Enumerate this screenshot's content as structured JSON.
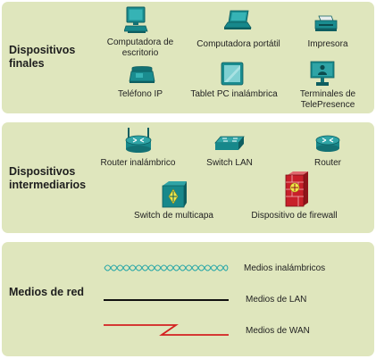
{
  "sections": [
    {
      "title_line1": "Dispositivos",
      "title_line2": "finales",
      "items": [
        {
          "label_line1": "Computadora de",
          "label_line2": "escritorio",
          "icon": "desktop-computer-icon"
        },
        {
          "label_line1": "Computadora portátil",
          "label_line2": "",
          "icon": "laptop-icon"
        },
        {
          "label_line1": "Impresora",
          "label_line2": "",
          "icon": "printer-icon"
        },
        {
          "label_line1": "Teléfono IP",
          "label_line2": "",
          "icon": "ip-phone-icon"
        },
        {
          "label_line1": "Tablet PC inalámbrica",
          "label_line2": "",
          "icon": "tablet-icon"
        },
        {
          "label_line1": "Terminales de",
          "label_line2": "TelePresence",
          "icon": "telepresence-icon"
        }
      ]
    },
    {
      "title_line1": "Dispositivos",
      "title_line2": "intermediarios",
      "items": [
        {
          "label_line1": "Router inalámbrico",
          "label_line2": "",
          "icon": "wireless-router-icon"
        },
        {
          "label_line1": "Switch LAN",
          "label_line2": "",
          "icon": "lan-switch-icon"
        },
        {
          "label_line1": "Router",
          "label_line2": "",
          "icon": "router-icon"
        },
        {
          "label_line1": "Switch de multicapa",
          "label_line2": "",
          "icon": "multilayer-switch-icon"
        },
        {
          "label_line1": "Dispositivo de firewall",
          "label_line2": "",
          "icon": "firewall-icon"
        }
      ]
    },
    {
      "title_line1": "Medios de red",
      "title_line2": "",
      "items": [
        {
          "label_line1": "Medios inalámbricos",
          "icon": "wireless-media-line-icon",
          "color": "#2aa8a8"
        },
        {
          "label_line1": "Medios de LAN",
          "icon": "lan-media-line-icon",
          "color": "#111111"
        },
        {
          "label_line1": "Medios de WAN",
          "icon": "wan-media-line-icon",
          "color": "#d42020"
        }
      ]
    }
  ],
  "colors": {
    "panel": "#dfe6bd",
    "device_teal": "#1a8c8f",
    "firewall_red": "#c8202a"
  }
}
